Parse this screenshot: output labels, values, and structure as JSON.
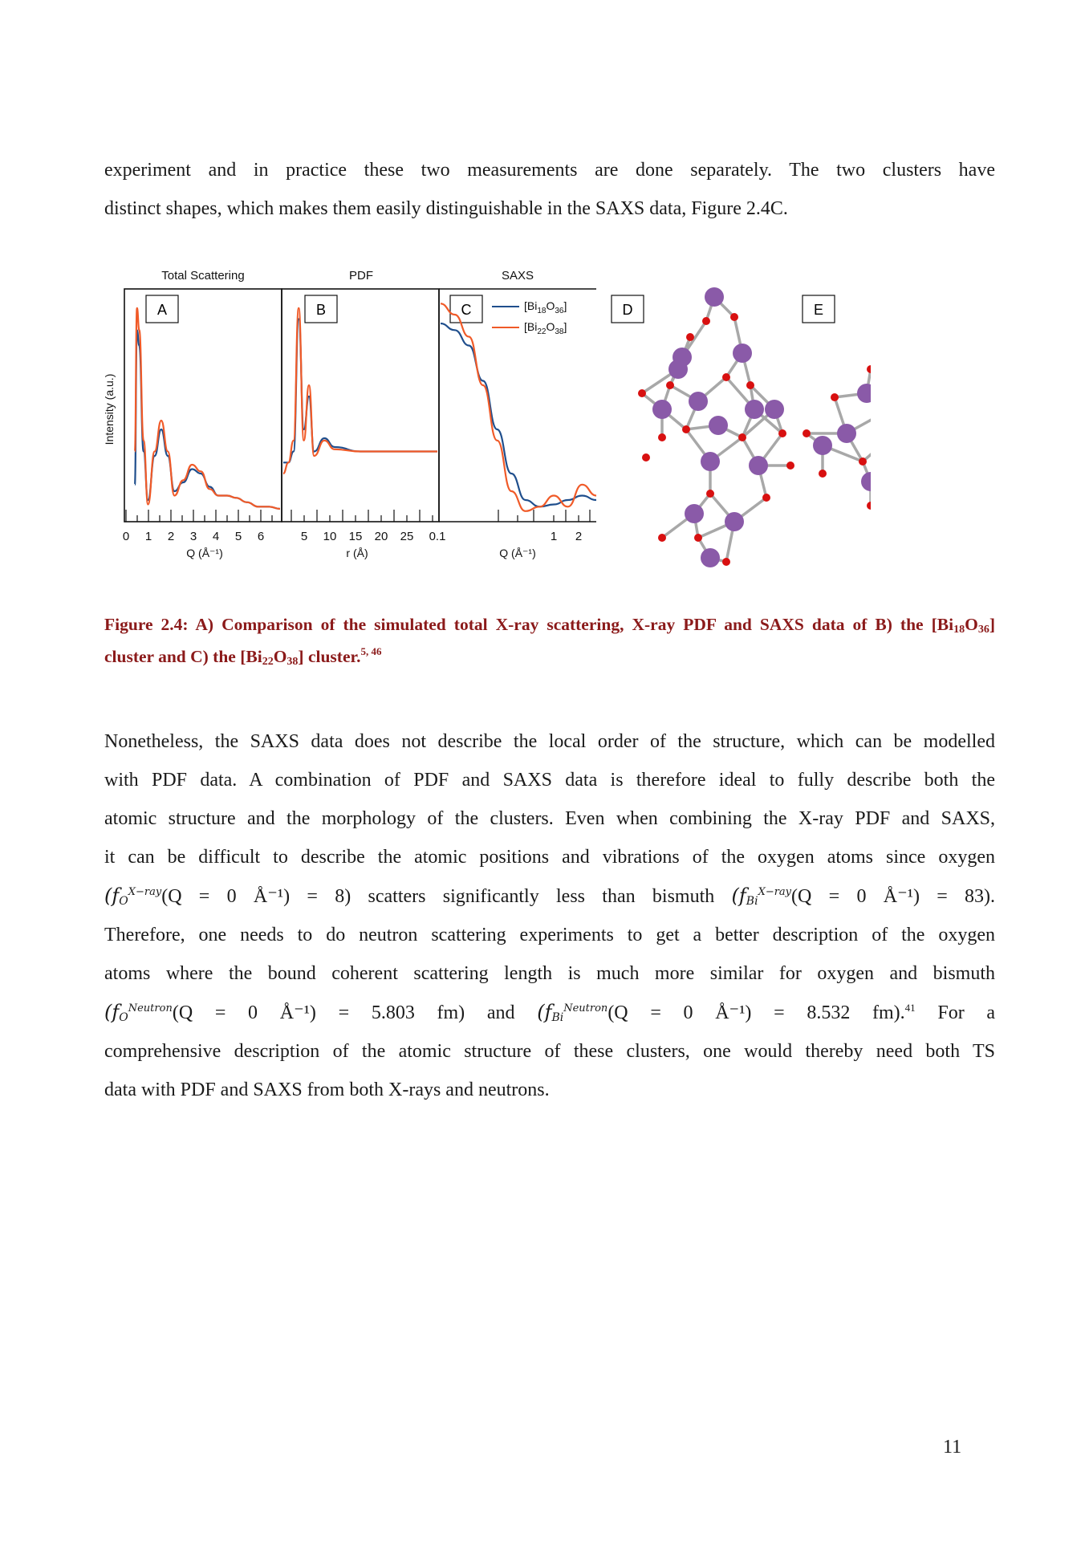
{
  "para1": {
    "line1": "experiment and in practice these two measurements are done separately. The two clusters have",
    "line2": "distinct shapes, which makes them easily distinguishable in the SAXS data, Figure 2.4C."
  },
  "figure": {
    "panel_titles": [
      "Total Scattering",
      "PDF",
      "SAXS"
    ],
    "panel_letters": [
      "A",
      "B",
      "C",
      "D",
      "E"
    ],
    "ylabel": "Intensity (a.u.)",
    "xlabels": [
      "Q (Å⁻¹)",
      "r (Å)",
      "Q (Å⁻¹)"
    ],
    "ticks_A": [
      "0",
      "1",
      "2",
      "3",
      "4",
      "5",
      "6"
    ],
    "ticks_B": [
      "5",
      "10",
      "15",
      "20",
      "25"
    ],
    "ticks_C": [
      "0.1",
      "1",
      "2"
    ],
    "legend": [
      {
        "pre": "[Bi",
        "s1": "18",
        "mid": "O",
        "s2": "36",
        "post": "]",
        "color": "#1f4e8c"
      },
      {
        "pre": "[Bi",
        "s1": "22",
        "mid": "O",
        "s2": "38",
        "post": "]",
        "color": "#f05a28"
      }
    ],
    "colors": {
      "series1": "#1f4e8c",
      "series2": "#f05a28",
      "bismuth": "#8a5aa8",
      "oxygen": "#d81010",
      "bond": "#a8a8a8"
    }
  },
  "chart_data": [
    {
      "type": "line",
      "title": "Total Scattering",
      "xlabel": "Q (Å⁻¹)",
      "ylabel": "Intensity (a.u.)",
      "xlim": [
        0,
        7
      ],
      "series": [
        {
          "name": "[Bi18O36]",
          "x": [
            0.4,
            0.5,
            0.6,
            0.8,
            1.0,
            1.3,
            1.6,
            1.9,
            2.2,
            2.6,
            3.0,
            3.4,
            3.8,
            4.2,
            4.6,
            5.0,
            5.5,
            6.0,
            6.5,
            7.0
          ],
          "y": [
            0.15,
            0.85,
            0.78,
            0.3,
            0.08,
            0.28,
            0.4,
            0.28,
            0.12,
            0.16,
            0.22,
            0.2,
            0.14,
            0.1,
            0.1,
            0.09,
            0.07,
            0.05,
            0.05,
            0.04
          ]
        },
        {
          "name": "[Bi22O38]",
          "x": [
            0.4,
            0.5,
            0.6,
            0.8,
            1.0,
            1.3,
            1.6,
            1.9,
            2.2,
            2.6,
            3.0,
            3.4,
            3.8,
            4.2,
            4.6,
            5.0,
            5.5,
            6.0,
            6.5,
            7.0
          ],
          "y": [
            0.3,
            0.95,
            0.85,
            0.35,
            0.06,
            0.3,
            0.44,
            0.3,
            0.1,
            0.17,
            0.24,
            0.21,
            0.13,
            0.1,
            0.1,
            0.09,
            0.07,
            0.05,
            0.05,
            0.04
          ]
        }
      ]
    },
    {
      "type": "line",
      "title": "PDF",
      "xlabel": "r (Å)",
      "xlim": [
        0,
        30
      ],
      "series": [
        {
          "name": "[Bi18O36]",
          "x": [
            0,
            1,
            2,
            3,
            4,
            5,
            6,
            8,
            10,
            15,
            20,
            25,
            30
          ],
          "y": [
            0.25,
            0.25,
            0.3,
            0.9,
            0.4,
            0.55,
            0.3,
            0.36,
            0.32,
            0.3,
            0.3,
            0.3,
            0.3
          ]
        },
        {
          "name": "[Bi22O38]",
          "x": [
            0,
            1,
            2,
            3,
            4,
            5,
            6,
            8,
            10,
            15,
            20,
            25,
            30
          ],
          "y": [
            0.2,
            0.25,
            0.35,
            0.95,
            0.35,
            0.6,
            0.28,
            0.35,
            0.31,
            0.3,
            0.3,
            0.3,
            0.3
          ]
        }
      ]
    },
    {
      "type": "line",
      "title": "SAXS",
      "xlabel": "Q (Å⁻¹)",
      "series": [
        {
          "name": "[Bi18O36]",
          "x": [
            0.1,
            0.3,
            0.5,
            0.7,
            0.9,
            1.1,
            1.3,
            1.5,
            1.7,
            1.9,
            2.1,
            2.3
          ],
          "y": [
            0.88,
            0.85,
            0.78,
            0.62,
            0.4,
            0.2,
            0.08,
            0.05,
            0.06,
            0.08,
            0.1,
            0.08
          ]
        },
        {
          "name": "[Bi22O38]",
          "x": [
            0.1,
            0.3,
            0.5,
            0.7,
            0.9,
            1.1,
            1.3,
            1.5,
            1.7,
            1.9,
            2.1,
            2.3
          ],
          "y": [
            0.97,
            0.92,
            0.82,
            0.6,
            0.35,
            0.12,
            0.03,
            0.05,
            0.1,
            0.05,
            0.15,
            0.1
          ]
        }
      ]
    }
  ],
  "caption": {
    "line1a": "Figure 2.4: A) Comparison of the simulated total X-ray scattering, X-ray PDF and SAXS data of B) the [Bi",
    "line1b": "18",
    "line1c": "O",
    "line1d": "36",
    "line1e": "]",
    "line2a": "cluster and C) the [Bi",
    "line2b": "22",
    "line2c": "O",
    "line2d": "38",
    "line2e": "] cluster.",
    "line2ref": "5, 46"
  },
  "para2": {
    "l1": "Nonetheless, the SAXS data does not describe the local order of the structure, which can be modelled",
    "l2": "with PDF data. A combination of PDF and SAXS data is therefore ideal to fully describe both the",
    "l3": "atomic structure and the morphology of the clusters. Even when combining the X-ray PDF and SAXS,",
    "l4": "it can be difficult to describe the atomic positions and vibrations of the oxygen atoms since oxygen",
    "l5a": "(f",
    "l5b": "O",
    "l5c": "X−ray",
    "l5d": "(Q = 0 Å⁻¹) = 8)",
    "l5e": "scatters significantly less than bismuth",
    "l5f": "(f",
    "l5g": "Bi",
    "l5h": "X−ray",
    "l5i": "(Q = 0 Å⁻¹) = 83).",
    "l6": "Therefore, one needs to do neutron scattering experiments to get a better description of the oxygen",
    "l7": "atoms where the bound coherent scattering length is much more similar for oxygen and bismuth",
    "l8a": "(f",
    "l8b": "O",
    "l8c": "Neutron",
    "l8d": "(Q = 0 Å⁻¹) = 5.803 fm)",
    "l8e": "and",
    "l8f": "(f",
    "l8g": "Bi",
    "l8h": "Neutron",
    "l8i": "(Q = 0 Å⁻¹) = 8.532 fm).",
    "l8ref": "41",
    "l8j": "For",
    "l8k": "a",
    "l9": "comprehensive description of the atomic structure of these clusters, one would thereby need both TS",
    "l10": "data with PDF and SAXS from both X-rays and neutrons."
  },
  "page_number": "11"
}
